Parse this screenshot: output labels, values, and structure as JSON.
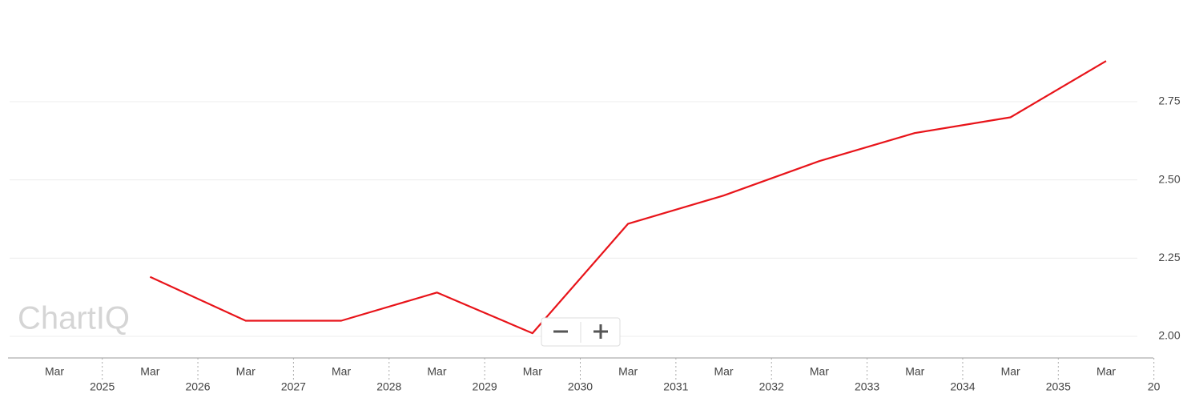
{
  "chart_data": {
    "type": "line",
    "watermark": "ChartIQ",
    "categories": [
      "Mar",
      "Mar",
      "Mar",
      "Mar",
      "Mar",
      "Mar",
      "Mar",
      "Mar",
      "Mar",
      "Mar",
      "Mar",
      "Mar"
    ],
    "year_labels": [
      "2025",
      "2026",
      "2027",
      "2028",
      "2029",
      "2030",
      "2031",
      "2032",
      "2033",
      "2034",
      "2035",
      "20"
    ],
    "values": [
      null,
      2.19,
      2.05,
      2.05,
      2.14,
      2.01,
      2.36,
      2.45,
      2.56,
      2.65,
      2.7,
      2.88
    ],
    "color": "#e8141a",
    "ylim": [
      1.931,
      3.075
    ],
    "yticks": [
      {
        "value": 2,
        "label": "2.00"
      },
      2.25,
      {
        "value": 2.5,
        "label": "2.50"
      },
      2.75
    ],
    "grid": true
  }
}
